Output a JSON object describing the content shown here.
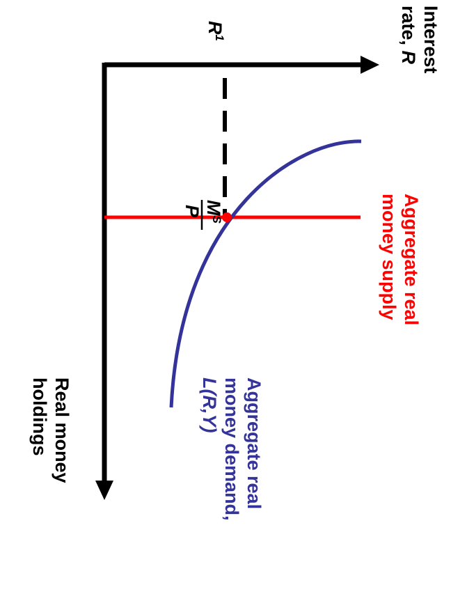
{
  "diagram": {
    "y_axis_label": {
      "line1": "Interest",
      "line2_prefix": "rate, ",
      "line2_var": "R"
    },
    "x_axis_label": {
      "line1": "Real money",
      "line2": "holdings"
    },
    "r1_label": {
      "var": "R",
      "sub": "1"
    },
    "supply_tick_label": {
      "numerator": "M",
      "numerator_sup": "S",
      "denominator": "P"
    },
    "supply_label": {
      "line1": "Aggregate real",
      "line2": "money supply"
    },
    "demand_label": {
      "line1": "Aggregate real",
      "line2": "money demand,",
      "line3": "L(R,Y)"
    },
    "colors": {
      "axes": "#000000",
      "supply": "#ff0000",
      "demand": "#333399"
    }
  }
}
